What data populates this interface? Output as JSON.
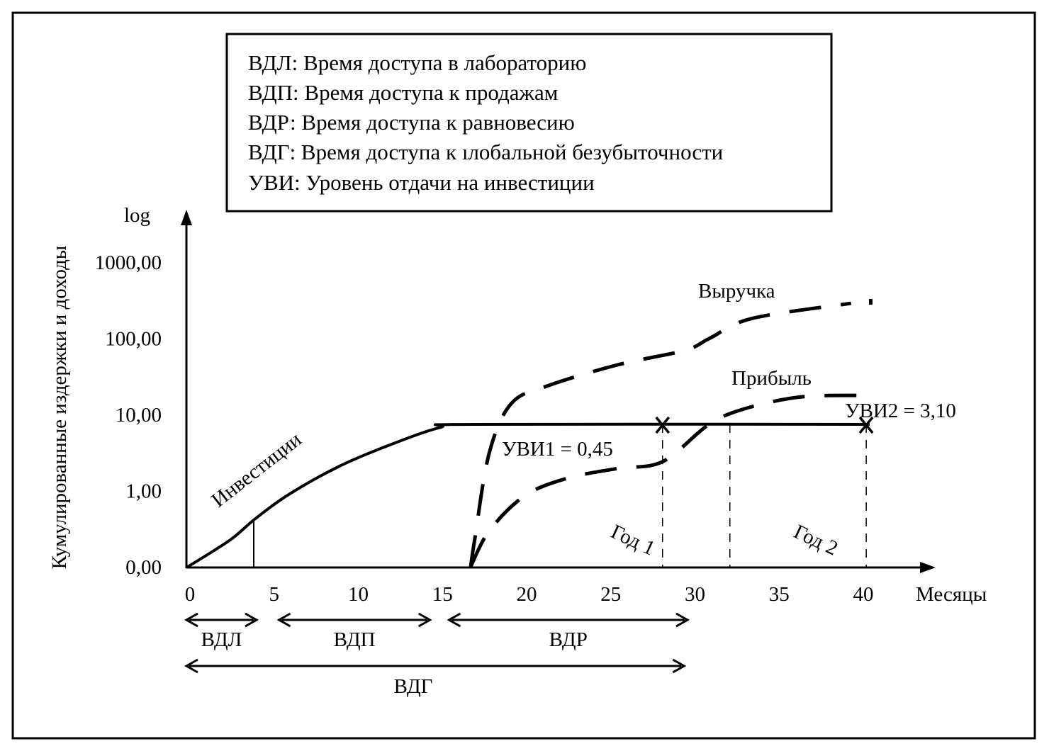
{
  "chart_data": {
    "type": "line",
    "legend": [
      "ВДЛ: Время доступа в лабораторию",
      "ВДП: Время доступа к продажам",
      "ВДР: Время доступа к равновесию",
      "ВДГ: Время доступа к ıлобальной безубыточности",
      "УВИ: Уровень отдачи на инвестиции"
    ],
    "legend_placement": "top-center",
    "ylabel": "Кумулированные издержки и доходы",
    "yscale_label": "log",
    "xlabel": "Месяцы",
    "y_ticks": [
      "0,00",
      "1,00",
      "10,00",
      "100,00",
      "1000,00"
    ],
    "x_ticks": [
      "0",
      "5",
      "10",
      "15",
      "20",
      "25",
      "30",
      "35",
      "40"
    ],
    "xlim": [
      0,
      40
    ],
    "y_levels_note": "y values given as tick level index: 0=0,00, 1=1,00, 2=10,00, 3=100,00, 4=1000,00",
    "series": [
      {
        "name": "Инвестиции",
        "style": "solid",
        "x": [
          0,
          2.5,
          4,
          6,
          9,
          12,
          15,
          17,
          40.5
        ],
        "y": [
          0,
          0.35,
          0.63,
          0.95,
          1.32,
          1.6,
          1.83,
          1.87,
          1.87
        ]
      },
      {
        "name": "Выручка",
        "style": "dashed",
        "x": [
          16.8,
          17.05,
          17.9,
          19.2,
          21.3,
          25.5,
          29.5,
          31,
          33.5,
          39.4
        ],
        "y": [
          0,
          0.37,
          1.49,
          2.14,
          2.37,
          2.65,
          2.84,
          3.0,
          3.26,
          3.46
        ]
      },
      {
        "name": "Прибыль",
        "style": "dashed",
        "x": [
          16.8,
          17.9,
          20,
          22.5,
          25.5,
          28.2,
          30.9,
          33,
          36.4,
          40.2
        ],
        "y": [
          0,
          0.47,
          0.93,
          1.16,
          1.29,
          1.38,
          1.86,
          2.07,
          2.23,
          2.25
        ]
      }
    ],
    "annotations": {
      "roi1": "УВИ1 = 0,45",
      "roi2": "УВИ2 = 3,10",
      "year1": "Год 1",
      "year2": "Год 2"
    },
    "markers": [
      {
        "x": 28.2,
        "y": 1.87
      },
      {
        "x": 40.3,
        "y": 1.87
      }
    ],
    "vlines_dashed": [
      28.2,
      32.2,
      40.3
    ],
    "vline_solid": 4,
    "intervals": [
      {
        "label": "ВДЛ",
        "from": 0,
        "to": 4
      },
      {
        "label": "ВДП",
        "from": 5.5,
        "to": 14.3
      },
      {
        "label": "ВДР",
        "from": 15.6,
        "to": 29.6
      },
      {
        "label": "ВДГ",
        "from": 0,
        "to": 29.4
      }
    ]
  }
}
